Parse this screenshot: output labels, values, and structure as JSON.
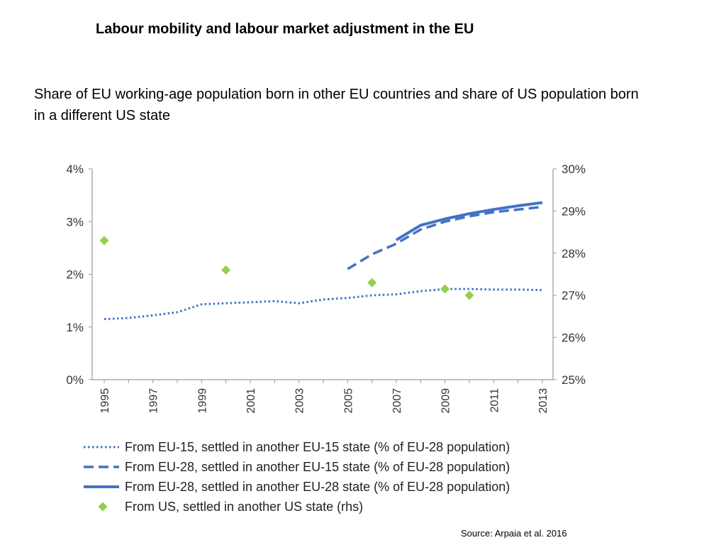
{
  "slide": {
    "title": "Labour mobility and labour market adjustment in the EU",
    "subtitle": "Share of EU working-age population born in other EU countries and share of US population born in a different US state",
    "source": "Source: Arpaia et al. 2016"
  },
  "chart_data": {
    "type": "line",
    "x_ticks": [
      "1995",
      "1997",
      "1999",
      "2001",
      "2003",
      "2005",
      "2007",
      "2009",
      "2011",
      "2013"
    ],
    "xlim": [
      1995,
      2013
    ],
    "y_left": {
      "ticks": [
        "0%",
        "1%",
        "2%",
        "3%",
        "4%"
      ],
      "range": [
        0,
        4
      ]
    },
    "y_right": {
      "ticks": [
        "25%",
        "26%",
        "27%",
        "28%",
        "29%",
        "30%"
      ],
      "range": [
        25,
        30
      ]
    },
    "grid": false,
    "legend_position": "bottom",
    "series": [
      {
        "name": "From EU-15, settled in another EU-15 state (% of EU-28 population)",
        "style": "dotted",
        "axis": "left",
        "color": "#4472C4",
        "x": [
          1995,
          1996,
          1997,
          1998,
          1999,
          2000,
          2001,
          2002,
          2003,
          2004,
          2005,
          2006,
          2007,
          2008,
          2009,
          2010,
          2011,
          2012,
          2013
        ],
        "y": [
          1.15,
          1.17,
          1.22,
          1.28,
          1.43,
          1.45,
          1.47,
          1.49,
          1.45,
          1.52,
          1.55,
          1.6,
          1.62,
          1.68,
          1.72,
          1.72,
          1.71,
          1.71,
          1.7
        ]
      },
      {
        "name": "From EU-28, settled in another EU-15 state (% of EU-28 population)",
        "style": "dashed",
        "axis": "left",
        "color": "#4472C4",
        "x": [
          2005,
          2006,
          2007,
          2008,
          2009,
          2010,
          2011,
          2012,
          2013
        ],
        "y": [
          2.1,
          2.38,
          2.58,
          2.85,
          3.0,
          3.1,
          3.18,
          3.23,
          3.28
        ]
      },
      {
        "name": "From EU-28, settled in another EU-28 state (% of EU-28 population)",
        "style": "solid",
        "axis": "left",
        "color": "#4472C4",
        "x": [
          2007,
          2008,
          2009,
          2010,
          2011,
          2012,
          2013
        ],
        "y": [
          2.65,
          2.93,
          3.05,
          3.15,
          3.23,
          3.3,
          3.36
        ]
      },
      {
        "name": "From US, settled in another US state (rhs)",
        "style": "marker",
        "axis": "right",
        "color": "#92D050",
        "x": [
          1995,
          2000,
          2006,
          2009,
          2010
        ],
        "y": [
          28.3,
          27.6,
          27.3,
          27.15,
          27.0
        ]
      }
    ]
  }
}
